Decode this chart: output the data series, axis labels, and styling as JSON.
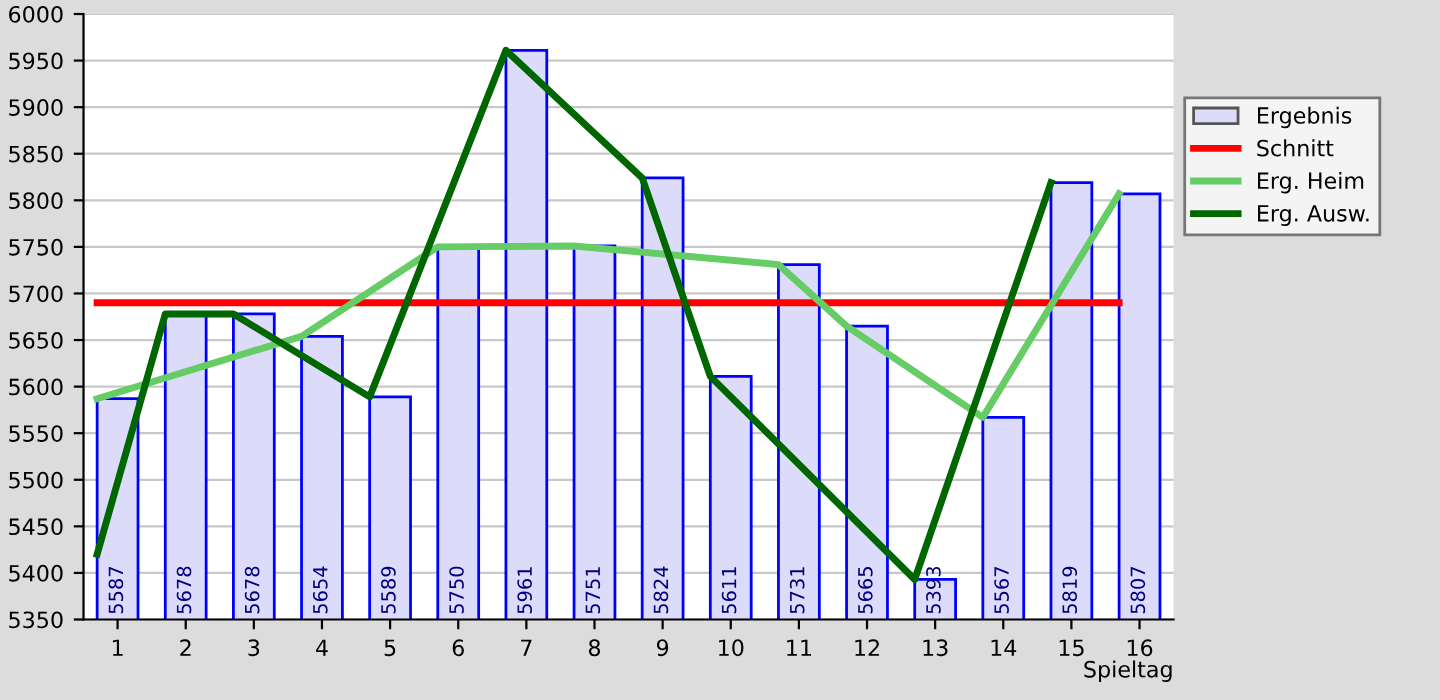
{
  "chart_data": {
    "type": "bar",
    "xlabel": "Spieltag",
    "x": [
      1,
      2,
      3,
      4,
      5,
      6,
      7,
      8,
      9,
      10,
      11,
      12,
      13,
      14,
      15,
      16
    ],
    "xlim": [
      0.5,
      16.5
    ],
    "xticks": [
      1,
      2,
      3,
      4,
      5,
      6,
      7,
      8,
      9,
      10,
      11,
      12,
      13,
      14,
      15,
      16
    ],
    "ylim": [
      5350,
      6000
    ],
    "yticks": [
      5350,
      5400,
      5450,
      5500,
      5550,
      5600,
      5650,
      5700,
      5750,
      5800,
      5850,
      5900,
      5950,
      6000
    ],
    "grid": "y",
    "legend": "right",
    "series": [
      {
        "name": "Ergebnis",
        "color": "#dcdcfa",
        "values": [
          5587,
          5678,
          5678,
          5654,
          5589,
          5750,
          5961,
          5751,
          5824,
          5611,
          5731,
          5665,
          5393,
          5567,
          5819,
          5807
        ],
        "value_labels": [
          "5587",
          "5678",
          "5678",
          "5654",
          "5589",
          "5750",
          "5961",
          "5751",
          "5824",
          "5611",
          "5731",
          "5665",
          "5393",
          "5567",
          "5819",
          "5807"
        ]
      },
      {
        "name": "Schnitt",
        "type": "line",
        "color": "#ff0000",
        "x": [
          0.7,
          15.7
        ],
        "values": [
          5690,
          5690
        ]
      },
      {
        "name": "Erg. Heim",
        "type": "line",
        "color": "#66cc66",
        "x": [
          0.7,
          3.7,
          5.7,
          7.7,
          10.7,
          11.7,
          13.7,
          15.7
        ],
        "values": [
          5587,
          5654,
          5750,
          5751,
          5731,
          5665,
          5567,
          5807
        ]
      },
      {
        "name": "Erg. Ausw.",
        "type": "line",
        "color": "#006600",
        "x": [
          0.7,
          1.7,
          2.7,
          4.7,
          6.7,
          8.7,
          9.7,
          12.7,
          14.7
        ],
        "values": [
          5420,
          5678,
          5678,
          5589,
          5961,
          5824,
          5611,
          5393,
          5819
        ]
      }
    ]
  }
}
